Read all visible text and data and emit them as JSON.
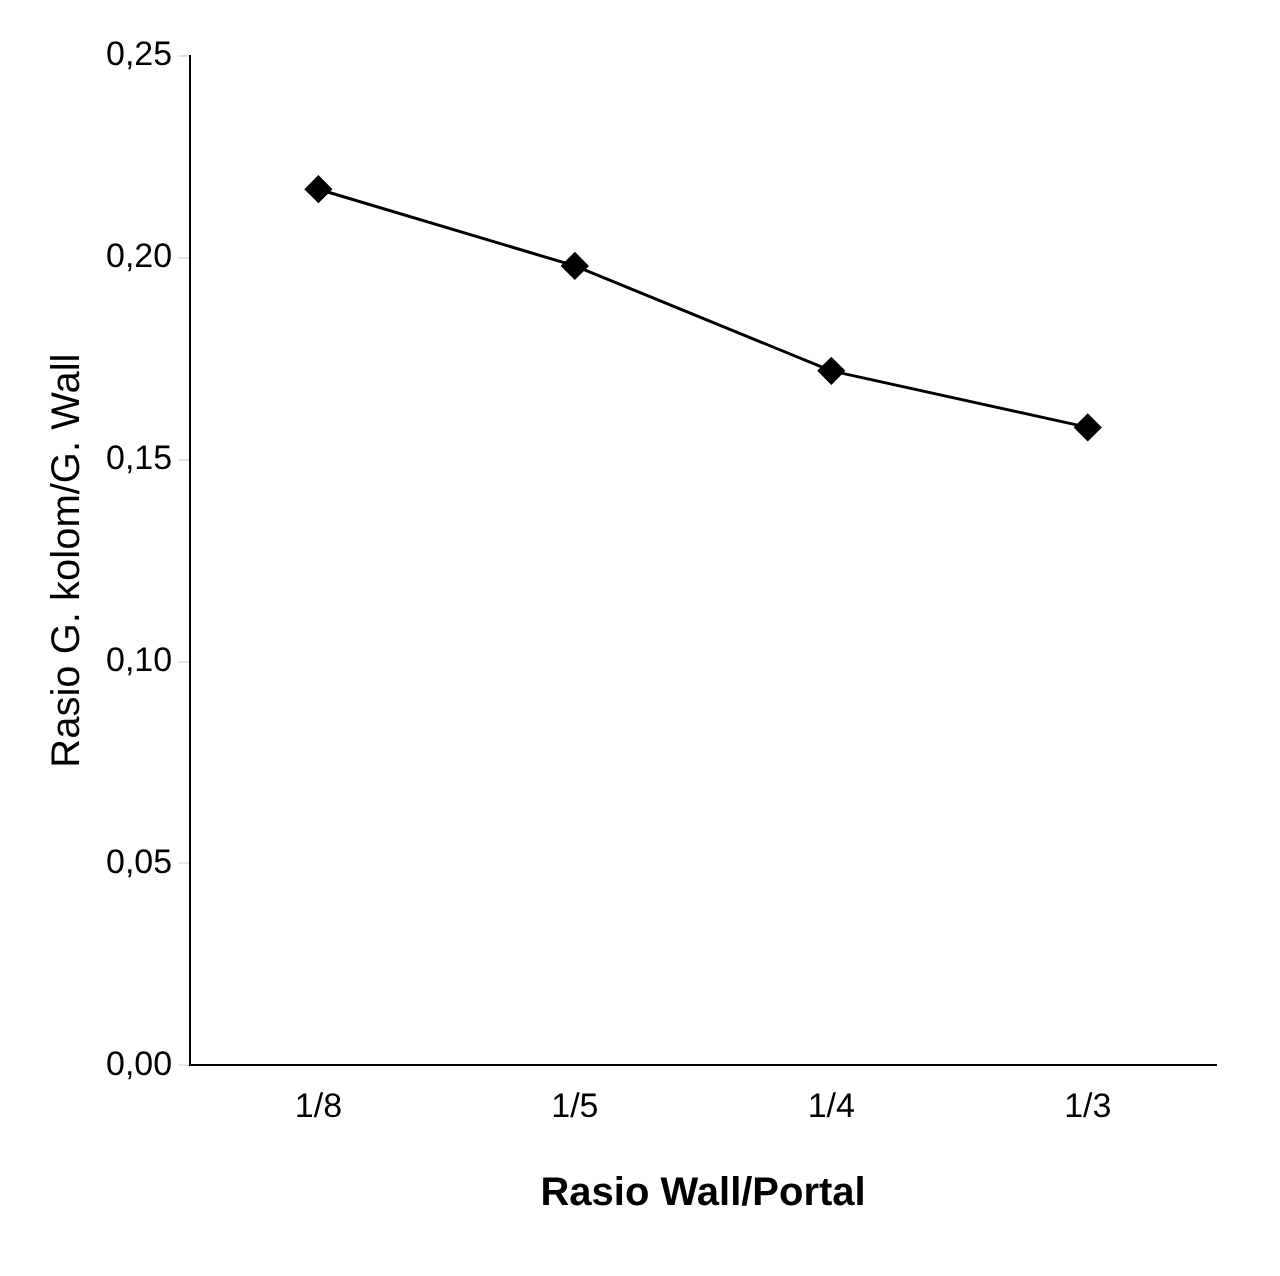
{
  "chart_data": {
    "type": "line",
    "xlabel": "Rasio Wall/Portal",
    "ylabel": "Rasio G. kolom/G. Wall",
    "categories": [
      "1/8",
      "1/5",
      "1/4",
      "1/3"
    ],
    "series": [
      {
        "color": "#000000",
        "values": [
          0.217,
          0.198,
          0.172,
          0.158
        ]
      }
    ],
    "ylim": [
      0,
      0.25
    ],
    "yticks": [
      {
        "value": 0,
        "label": "0,00"
      },
      {
        "value": 0.05,
        "label": "0,05"
      },
      {
        "value": 0.1,
        "label": "0,10"
      },
      {
        "value": 0.15,
        "label": "0,15"
      },
      {
        "value": 0.2,
        "label": "0,20"
      },
      {
        "value": 0.25,
        "label": "0,25"
      }
    ],
    "grid": false,
    "legend": false,
    "marker": "diamond",
    "line_style": "solid"
  }
}
